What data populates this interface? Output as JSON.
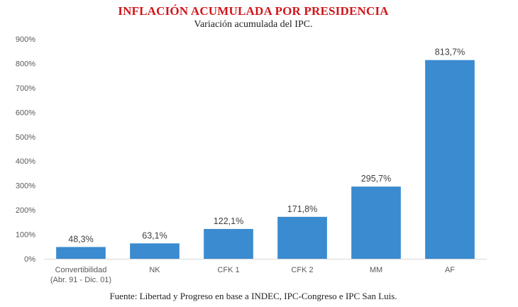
{
  "title": "INFLACIÓN ACUMULADA POR PRESIDENCIA",
  "subtitle": "Variación acumulada del IPC.",
  "source": "Fuente: Libertad y Progreso en base a INDEC, IPC-Congreso e IPC San Luis.",
  "colors": {
    "bar": "#3a8bd0",
    "title": "#d0161b",
    "axis": "#d9d9d9"
  },
  "chart_data": {
    "type": "bar",
    "categories": [
      [
        "Convertibilidad",
        "(Abr. 91 - Dic. 01)"
      ],
      [
        "NK"
      ],
      [
        "CFK 1"
      ],
      [
        "CFK 2"
      ],
      [
        "MM"
      ],
      [
        "AF"
      ]
    ],
    "values": [
      48.3,
      63.1,
      122.1,
      171.8,
      295.7,
      813.7
    ],
    "data_labels": [
      "48,3%",
      "63,1%",
      "122,1%",
      "171,8%",
      "295,7%",
      "813,7%"
    ],
    "ylim": [
      0,
      900
    ],
    "yticks": [
      0,
      100,
      200,
      300,
      400,
      500,
      600,
      700,
      800,
      900
    ],
    "ytick_labels": [
      "0%",
      "100%",
      "200%",
      "300%",
      "400%",
      "500%",
      "600%",
      "700%",
      "800%",
      "900%"
    ],
    "grid": false,
    "legend": "none"
  }
}
